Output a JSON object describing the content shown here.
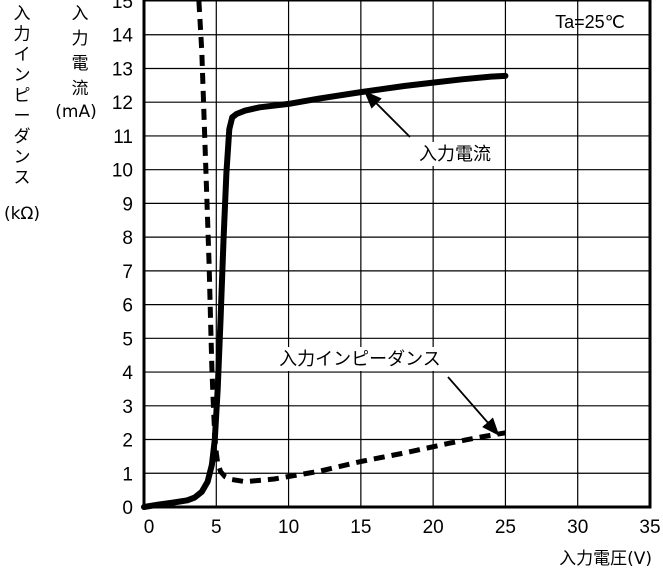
{
  "chart_data": {
    "type": "line",
    "title": "",
    "condition_label": "Ta=25℃",
    "xlabel": "入力電圧(V)",
    "ylabel_left": {
      "current_lines": [
        "入",
        "力",
        "電",
        "流",
        "(mA)"
      ],
      "impedance_lines": [
        "入力インピーダンス",
        "(kΩ)"
      ]
    },
    "xlim": [
      0,
      35
    ],
    "ylim": [
      0,
      15
    ],
    "x_ticks": [
      0,
      5,
      10,
      15,
      20,
      25,
      30,
      35
    ],
    "y_ticks": [
      0,
      1,
      2,
      3,
      4,
      5,
      6,
      7,
      8,
      9,
      10,
      11,
      12,
      13,
      14,
      15
    ],
    "grid": true,
    "series": [
      {
        "name": "入力電流",
        "style": "solid",
        "color": "#000000",
        "x": [
          0,
          1,
          2,
          3,
          3.5,
          4,
          4.4,
          4.7,
          4.9,
          5.1,
          5.3,
          5.5,
          5.7,
          5.9,
          6.1,
          6.4,
          7,
          8,
          10,
          12,
          15,
          18,
          20,
          22,
          24,
          25
        ],
        "y": [
          0,
          0.07,
          0.13,
          0.2,
          0.28,
          0.45,
          0.75,
          1.25,
          2.0,
          3.5,
          5.6,
          7.9,
          9.9,
          11.2,
          11.55,
          11.65,
          11.75,
          11.85,
          11.95,
          12.1,
          12.3,
          12.48,
          12.58,
          12.68,
          12.76,
          12.78
        ]
      },
      {
        "name": "入力インピーダンス",
        "style": "dashed",
        "color": "#000000",
        "x": [
          3.8,
          4.0,
          4.2,
          4.4,
          4.5,
          4.6,
          4.7,
          4.8,
          4.9,
          5.0,
          5.1,
          5.3,
          5.6,
          6.0,
          7.0,
          9.0,
          12,
          15,
          18,
          21,
          23,
          25
        ],
        "y": [
          15.0,
          13.5,
          11.0,
          8.5,
          7.2,
          5.6,
          4.1,
          3.0,
          2.1,
          1.6,
          1.3,
          1.05,
          0.9,
          0.82,
          0.75,
          0.83,
          1.05,
          1.35,
          1.6,
          1.88,
          2.05,
          2.2
        ]
      }
    ],
    "annotations": [
      {
        "text": "入力電流",
        "points_to": {
          "x": 15.3,
          "y": 12.3
        }
      },
      {
        "text": "入力インピーダンス",
        "points_to": {
          "x": 24.5,
          "y": 2.15
        }
      }
    ]
  }
}
